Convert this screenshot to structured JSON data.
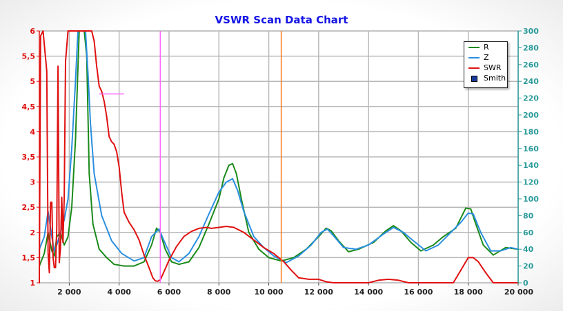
{
  "chart_data": {
    "type": "line",
    "title": "VSWR Scan Data Chart",
    "xlim": [
      800,
      20000
    ],
    "ylim_left": [
      1,
      6
    ],
    "ylim_right": [
      0,
      300
    ],
    "x_ticks": [
      "2 000",
      "4 000",
      "6 000",
      "8 000",
      "10 000",
      "12 000",
      "14 000",
      "16 000",
      "18 000",
      "20 000"
    ],
    "x_tick_values": [
      2000,
      4000,
      6000,
      8000,
      10000,
      12000,
      14000,
      16000,
      18000,
      20000
    ],
    "y_left_ticks": [
      "1",
      "1,5",
      "2",
      "2,5",
      "3",
      "3,5",
      "4",
      "4,5",
      "5",
      "5,5",
      "6"
    ],
    "y_left_values": [
      1,
      1.5,
      2,
      2.5,
      3,
      3.5,
      4,
      4.5,
      5,
      5.5,
      6
    ],
    "y_right_ticks": [
      "0",
      "20",
      "40",
      "60",
      "80",
      "100",
      "120",
      "140",
      "160",
      "180",
      "200",
      "220",
      "240",
      "260",
      "280",
      "300"
    ],
    "y_right_values": [
      0,
      20,
      40,
      60,
      80,
      100,
      120,
      140,
      160,
      180,
      200,
      220,
      240,
      260,
      280,
      300
    ],
    "grid": true,
    "legend_position": "top-right",
    "legend": [
      "R",
      "Z",
      "SWR",
      "Smith"
    ],
    "colors": {
      "R": "#1a8a1a",
      "Z": "#2a8fe0",
      "SWR": "#e01010",
      "Smith": "#1a3a9a",
      "marker_magenta": "#ff66ff",
      "marker_orange": "#ff7a1a"
    },
    "markers": {
      "magenta_x": 5650,
      "orange_x": 10500,
      "magenta_hline": {
        "x": [
          3200,
          4200
        ],
        "y": 4.75
      }
    },
    "series": [
      {
        "name": "R",
        "axis": "right",
        "points": [
          [
            800,
            20
          ],
          [
            1000,
            35
          ],
          [
            1150,
            60
          ],
          [
            1300,
            38
          ],
          [
            1400,
            32
          ],
          [
            1500,
            55
          ],
          [
            1650,
            60
          ],
          [
            1800,
            45
          ],
          [
            1950,
            55
          ],
          [
            2100,
            90
          ],
          [
            2250,
            170
          ],
          [
            2400,
            300
          ],
          [
            2500,
            300
          ],
          [
            2600,
            300
          ],
          [
            2700,
            270
          ],
          [
            2800,
            130
          ],
          [
            2950,
            70
          ],
          [
            3200,
            40
          ],
          [
            3500,
            30
          ],
          [
            3800,
            22
          ],
          [
            4200,
            20
          ],
          [
            4600,
            20
          ],
          [
            5000,
            25
          ],
          [
            5300,
            45
          ],
          [
            5500,
            65
          ],
          [
            5650,
            60
          ],
          [
            5850,
            40
          ],
          [
            6100,
            25
          ],
          [
            6400,
            22
          ],
          [
            6800,
            25
          ],
          [
            7200,
            42
          ],
          [
            7600,
            70
          ],
          [
            8000,
            100
          ],
          [
            8200,
            125
          ],
          [
            8400,
            140
          ],
          [
            8550,
            142
          ],
          [
            8700,
            130
          ],
          [
            8900,
            100
          ],
          [
            9200,
            60
          ],
          [
            9600,
            40
          ],
          [
            10000,
            30
          ],
          [
            10500,
            26
          ],
          [
            11000,
            30
          ],
          [
            11500,
            40
          ],
          [
            12000,
            55
          ],
          [
            12300,
            65
          ],
          [
            12500,
            62
          ],
          [
            12800,
            50
          ],
          [
            13200,
            37
          ],
          [
            13600,
            40
          ],
          [
            14200,
            48
          ],
          [
            14700,
            62
          ],
          [
            15000,
            68
          ],
          [
            15300,
            62
          ],
          [
            15700,
            48
          ],
          [
            16100,
            38
          ],
          [
            16600,
            45
          ],
          [
            17000,
            55
          ],
          [
            17500,
            65
          ],
          [
            17900,
            89
          ],
          [
            18100,
            88
          ],
          [
            18300,
            70
          ],
          [
            18600,
            45
          ],
          [
            19000,
            33
          ],
          [
            19500,
            42
          ],
          [
            20000,
            40
          ]
        ]
      },
      {
        "name": "Z",
        "axis": "right",
        "points": [
          [
            800,
            40
          ],
          [
            1000,
            55
          ],
          [
            1150,
            85
          ],
          [
            1300,
            55
          ],
          [
            1400,
            38
          ],
          [
            1500,
            45
          ],
          [
            1650,
            60
          ],
          [
            1800,
            75
          ],
          [
            1950,
            100
          ],
          [
            2100,
            160
          ],
          [
            2250,
            240
          ],
          [
            2350,
            300
          ],
          [
            2500,
            300
          ],
          [
            2650,
            300
          ],
          [
            2750,
            250
          ],
          [
            2850,
            190
          ],
          [
            3000,
            130
          ],
          [
            3300,
            80
          ],
          [
            3700,
            50
          ],
          [
            4100,
            35
          ],
          [
            4600,
            26
          ],
          [
            5000,
            30
          ],
          [
            5300,
            55
          ],
          [
            5600,
            64
          ],
          [
            5800,
            50
          ],
          [
            6100,
            30
          ],
          [
            6400,
            25
          ],
          [
            6800,
            35
          ],
          [
            7200,
            55
          ],
          [
            7600,
            82
          ],
          [
            8000,
            108
          ],
          [
            8300,
            120
          ],
          [
            8550,
            124
          ],
          [
            8750,
            110
          ],
          [
            9000,
            85
          ],
          [
            9400,
            55
          ],
          [
            9800,
            42
          ],
          [
            10200,
            32
          ],
          [
            10700,
            24
          ],
          [
            11200,
            32
          ],
          [
            11700,
            45
          ],
          [
            12100,
            60
          ],
          [
            12350,
            64
          ],
          [
            12600,
            56
          ],
          [
            13000,
            42
          ],
          [
            13500,
            40
          ],
          [
            14000,
            45
          ],
          [
            14600,
            58
          ],
          [
            15000,
            66
          ],
          [
            15400,
            60
          ],
          [
            15800,
            50
          ],
          [
            16300,
            38
          ],
          [
            16800,
            45
          ],
          [
            17300,
            60
          ],
          [
            17700,
            72
          ],
          [
            18000,
            83
          ],
          [
            18200,
            82
          ],
          [
            18500,
            60
          ],
          [
            18900,
            38
          ],
          [
            19300,
            38
          ],
          [
            19700,
            42
          ],
          [
            20000,
            40
          ]
        ]
      },
      {
        "name": "SWR",
        "axis": "left",
        "points": [
          [
            800,
            1
          ],
          [
            850,
            5.9
          ],
          [
            950,
            6
          ],
          [
            1100,
            5.2
          ],
          [
            1150,
            1.6
          ],
          [
            1200,
            1.2
          ],
          [
            1250,
            2.6
          ],
          [
            1300,
            2.6
          ],
          [
            1350,
            1.5
          ],
          [
            1400,
            1.3
          ],
          [
            1450,
            1.3
          ],
          [
            1500,
            2.1
          ],
          [
            1550,
            5.3
          ],
          [
            1600,
            1.4
          ],
          [
            1650,
            1.7
          ],
          [
            1700,
            2.7
          ],
          [
            1750,
            1.8
          ],
          [
            1800,
            2.7
          ],
          [
            1850,
            5.4
          ],
          [
            1950,
            6
          ],
          [
            2100,
            6
          ],
          [
            2400,
            6
          ],
          [
            2700,
            6
          ],
          [
            2900,
            6
          ],
          [
            3000,
            5.8
          ],
          [
            3100,
            5.3
          ],
          [
            3200,
            4.9
          ],
          [
            3300,
            4.8
          ],
          [
            3400,
            4.6
          ],
          [
            3500,
            4.3
          ],
          [
            3600,
            3.9
          ],
          [
            3700,
            3.8
          ],
          [
            3800,
            3.75
          ],
          [
            3900,
            3.6
          ],
          [
            4000,
            3.3
          ],
          [
            4100,
            2.8
          ],
          [
            4200,
            2.4
          ],
          [
            4400,
            2.2
          ],
          [
            4600,
            2.05
          ],
          [
            4800,
            1.85
          ],
          [
            5000,
            1.55
          ],
          [
            5200,
            1.3
          ],
          [
            5350,
            1.1
          ],
          [
            5450,
            1.04
          ],
          [
            5550,
            1.03
          ],
          [
            5650,
            1.06
          ],
          [
            5800,
            1.22
          ],
          [
            6000,
            1.45
          ],
          [
            6300,
            1.72
          ],
          [
            6600,
            1.92
          ],
          [
            6900,
            2.02
          ],
          [
            7200,
            2.08
          ],
          [
            7500,
            2.1
          ],
          [
            7700,
            2.08
          ],
          [
            8000,
            2.1
          ],
          [
            8300,
            2.12
          ],
          [
            8600,
            2.1
          ],
          [
            9000,
            2.0
          ],
          [
            9400,
            1.85
          ],
          [
            9800,
            1.7
          ],
          [
            10200,
            1.58
          ],
          [
            10600,
            1.42
          ],
          [
            10900,
            1.25
          ],
          [
            11200,
            1.1
          ],
          [
            11600,
            1.07
          ],
          [
            12000,
            1.07
          ],
          [
            12300,
            1.02
          ],
          [
            12600,
            1
          ],
          [
            13000,
            1
          ],
          [
            13500,
            1
          ],
          [
            14000,
            1
          ],
          [
            14400,
            1.05
          ],
          [
            14800,
            1.07
          ],
          [
            15200,
            1.05
          ],
          [
            15600,
            1
          ],
          [
            16000,
            1
          ],
          [
            16500,
            1
          ],
          [
            17000,
            1
          ],
          [
            17400,
            1
          ],
          [
            17700,
            1.25
          ],
          [
            18000,
            1.5
          ],
          [
            18200,
            1.5
          ],
          [
            18400,
            1.42
          ],
          [
            18700,
            1.2
          ],
          [
            19000,
            1
          ],
          [
            19500,
            1
          ],
          [
            20000,
            1
          ]
        ]
      }
    ]
  }
}
